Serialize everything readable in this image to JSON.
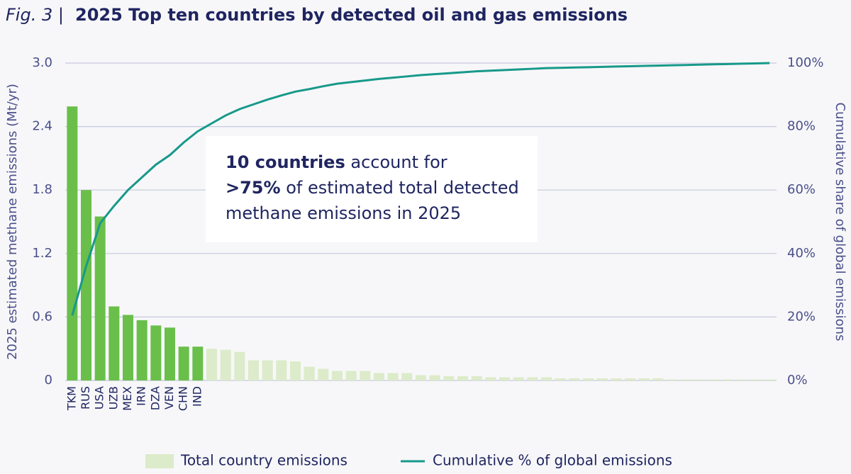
{
  "chart_data": {
    "type": "bar_line",
    "title_prefix": "Fig. 3 |",
    "title": "2025 Top ten countries by detected oil and gas emissions",
    "y_label": "2025 estimated methane emissions (Mt/yr)",
    "y2_label": "Cumulative share of global emissions",
    "annotation": [
      [
        {
          "text": "10 countries",
          "bold": true
        },
        {
          "text": " account for",
          "bold": false
        }
      ],
      [
        {
          "text": ">75%",
          "bold": true
        },
        {
          "text": " of estimated total detected",
          "bold": false
        }
      ],
      [
        {
          "text": "methane emissions in 2025",
          "bold": false
        }
      ]
    ],
    "categories": [
      "TKM",
      "RUS",
      "USA",
      "UZB",
      "MEX",
      "IRN",
      "DZA",
      "VEN",
      "CHN",
      "IND",
      null,
      null,
      null,
      null,
      null,
      null,
      null,
      null,
      null,
      null,
      null,
      null,
      null,
      null,
      null,
      null,
      null,
      null,
      null,
      null,
      null,
      null,
      null,
      null,
      null,
      null,
      null,
      null,
      null,
      null,
      null,
      null,
      null,
      null,
      null,
      null,
      null,
      null,
      null,
      null,
      null
    ],
    "series": [
      {
        "name": "Total country emissions",
        "color": "#dcebc9",
        "highlight_color": "#6abf4b",
        "highlight_count": 10,
        "values": [
          2.59,
          1.8,
          1.55,
          0.7,
          0.62,
          0.57,
          0.52,
          0.5,
          0.32,
          0.32,
          0.3,
          0.29,
          0.27,
          0.19,
          0.19,
          0.19,
          0.18,
          0.13,
          0.11,
          0.09,
          0.09,
          0.09,
          0.07,
          0.07,
          0.07,
          0.05,
          0.05,
          0.04,
          0.04,
          0.04,
          0.03,
          0.03,
          0.03,
          0.03,
          0.03,
          0.02,
          0.02,
          0.02,
          0.02,
          0.02,
          0.02,
          0.02,
          0.02,
          0.01,
          0.01,
          0.01,
          0.01,
          0.01,
          0.01,
          0.01,
          0.01
        ]
      },
      {
        "name": "Cumulative % of global emissions",
        "color": "#17998a",
        "axis": "y2",
        "type": "line",
        "values": [
          20.5,
          36,
          49.5,
          55,
          60,
          64,
          68,
          71,
          75,
          78.5,
          81,
          83.5,
          85.5,
          87,
          88.5,
          89.8,
          91,
          91.8,
          92.7,
          93.5,
          94,
          94.5,
          95,
          95.4,
          95.8,
          96.2,
          96.5,
          96.8,
          97.1,
          97.4,
          97.6,
          97.8,
          98,
          98.2,
          98.4,
          98.5,
          98.6,
          98.7,
          98.8,
          98.9,
          99,
          99.1,
          99.2,
          99.3,
          99.4,
          99.5,
          99.6,
          99.7,
          99.8,
          99.9,
          100
        ]
      }
    ],
    "ylim": [
      0,
      3
    ],
    "yticks": [
      0,
      0.6,
      1.2,
      1.8,
      2.4,
      {
        "value": 3,
        "label": "3.0"
      }
    ],
    "y2lim": [
      0,
      100
    ],
    "y2ticks": [
      {
        "value": 0,
        "label": "0%"
      },
      {
        "value": 20,
        "label": "20%"
      },
      {
        "value": 40,
        "label": "40%"
      },
      {
        "value": 60,
        "label": "60%"
      },
      {
        "value": 80,
        "label": "80%"
      },
      {
        "value": 100,
        "label": "100%"
      }
    ],
    "grid": true,
    "legend": "bottom"
  }
}
